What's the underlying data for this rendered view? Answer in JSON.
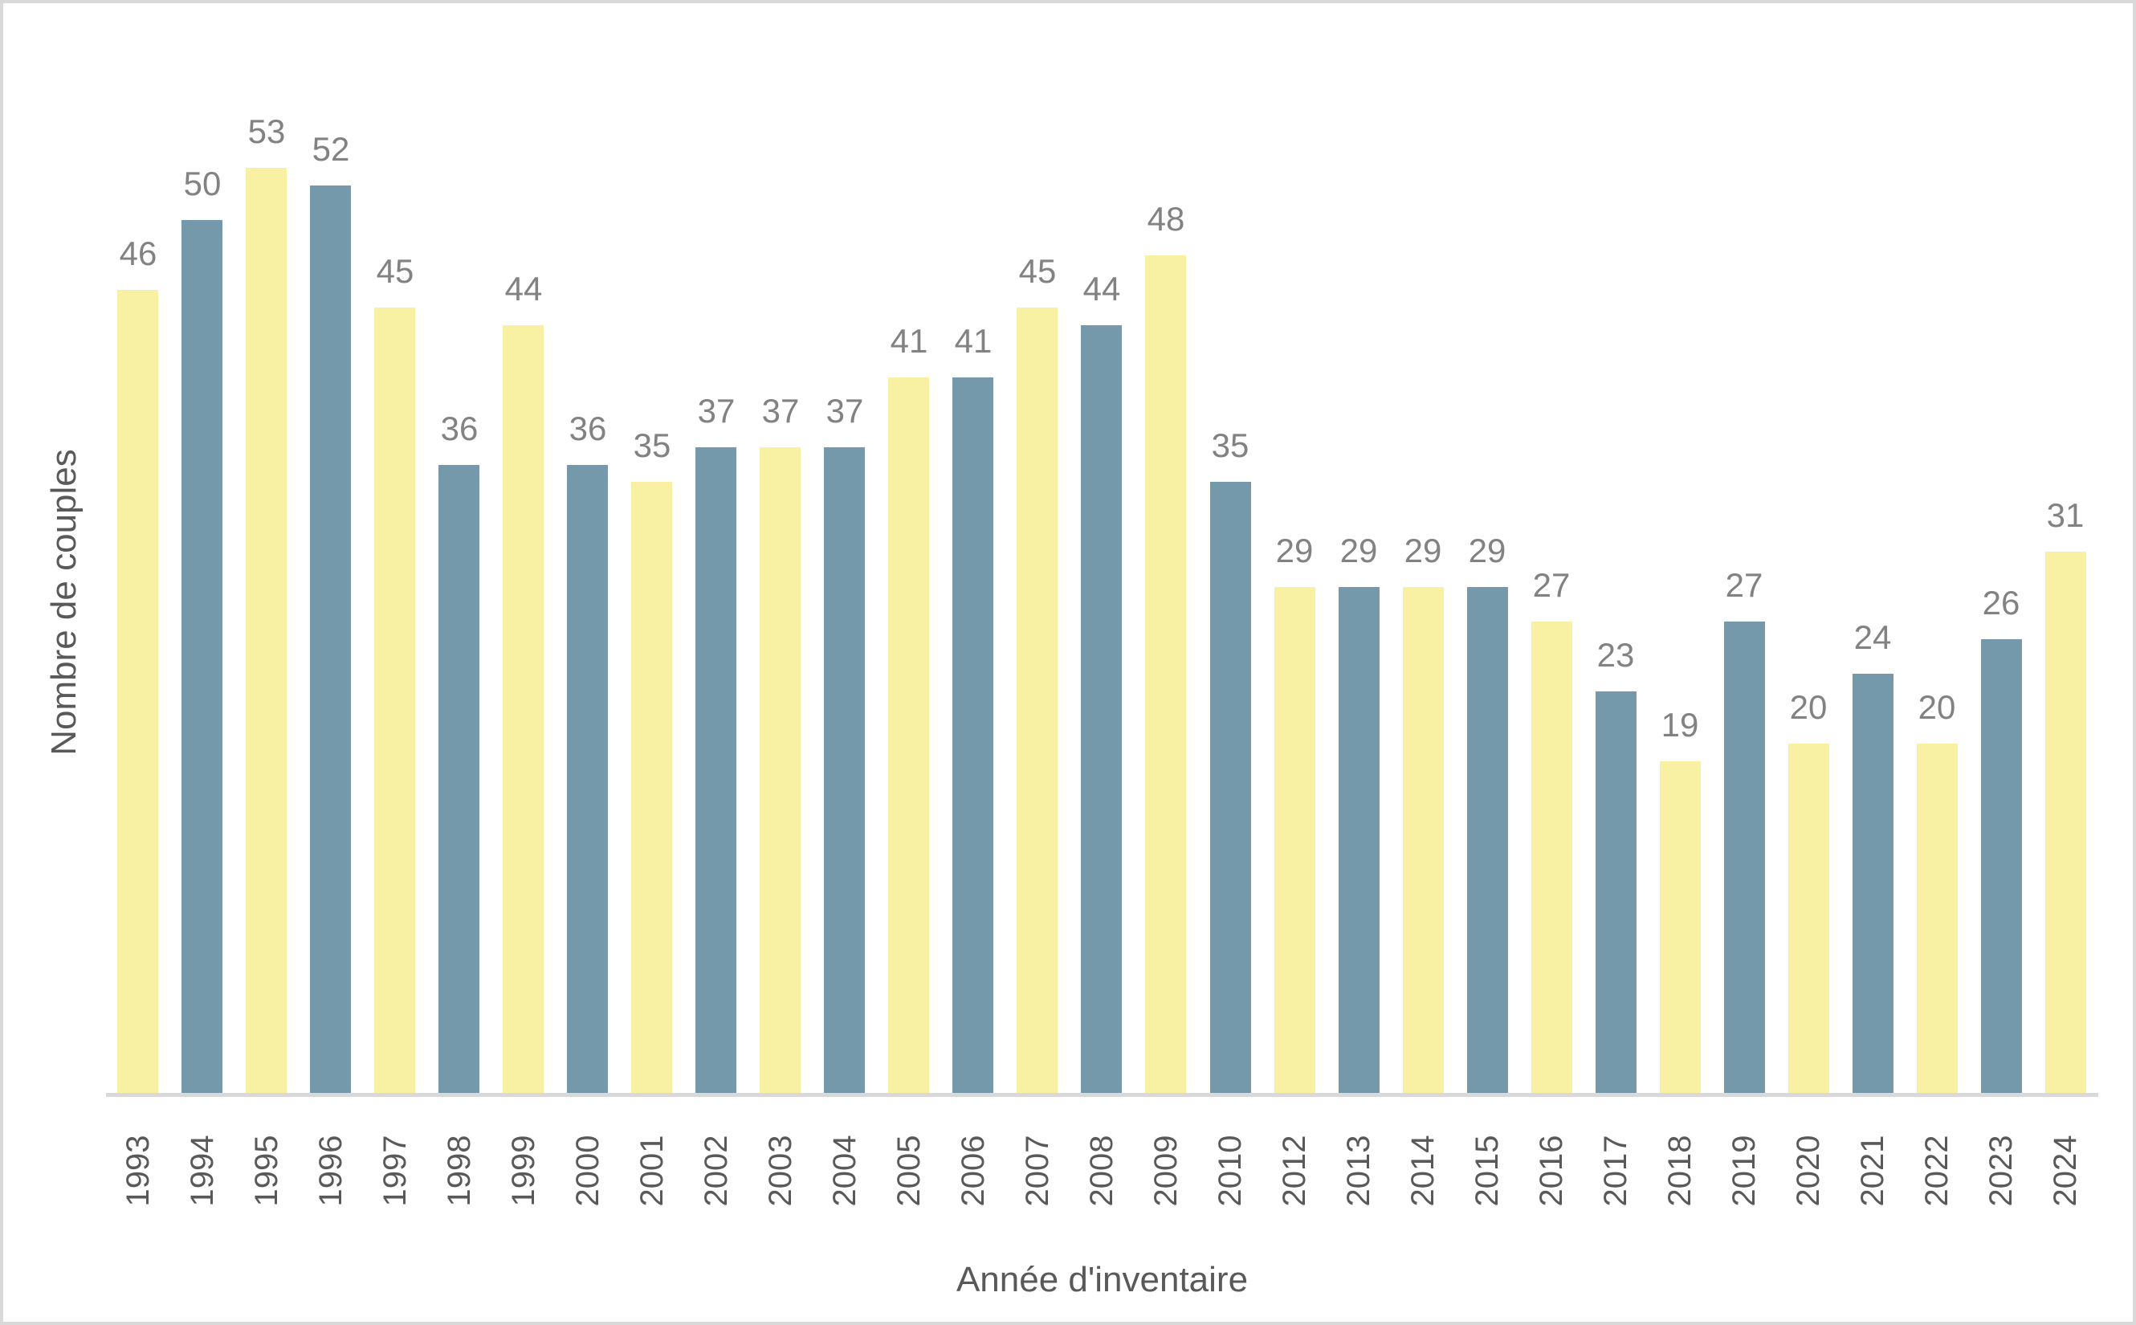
{
  "chart_data": {
    "type": "bar",
    "categories": [
      "1993",
      "1994",
      "1995",
      "1996",
      "1997",
      "1998",
      "1999",
      "2000",
      "2001",
      "2002",
      "2003",
      "2004",
      "2005",
      "2006",
      "2007",
      "2008",
      "2009",
      "2010",
      "2012",
      "2013",
      "2014",
      "2015",
      "2016",
      "2017",
      "2018",
      "2019",
      "2020",
      "2021",
      "2022",
      "2023",
      "2024"
    ],
    "values": [
      46,
      50,
      53,
      52,
      45,
      36,
      44,
      36,
      35,
      37,
      37,
      37,
      41,
      41,
      45,
      44,
      48,
      35,
      29,
      29,
      29,
      29,
      27,
      23,
      19,
      27,
      20,
      24,
      20,
      26,
      31
    ],
    "title": "",
    "xlabel": "Année d'inventaire",
    "ylabel": "Nombre de couples",
    "ylim": [
      0,
      53
    ],
    "grid": "off",
    "legend": "none",
    "data_labels": "above-bars",
    "note": "bars alternate colors by position starting with yellow; year 2011 absent from axis",
    "colors": {
      "bar_alternate": [
        "#F8F0A2",
        "#7499AB"
      ],
      "value_label": "#828282",
      "tick_label": "#595959",
      "axis_title": "#595959",
      "axis_line": "#D9D9D9",
      "background": "#FFFFFF",
      "frame_border": "#D9D9D9"
    }
  }
}
